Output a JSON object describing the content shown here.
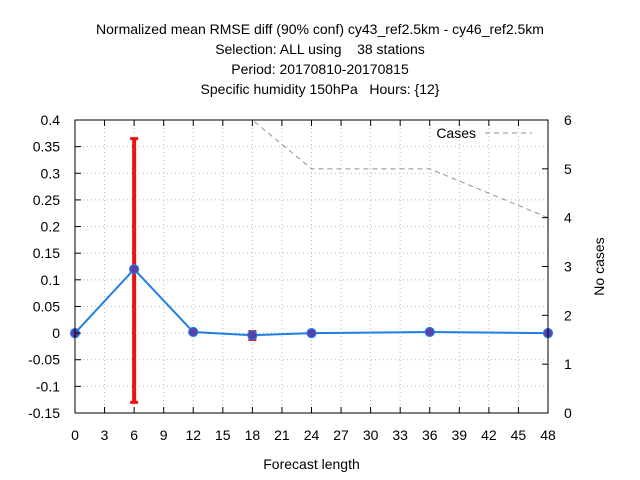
{
  "title_lines": [
    "Normalized mean RMSE diff (90% conf) cy43_ref2.5km - cy46_ref2.5km",
    "Selection: ALL using    38 stations",
    "Period: 20170810-20170815",
    "Specific humidity 150hPa   Hours: {12}"
  ],
  "chart_data": {
    "type": "line",
    "xlabel": "Forecast length",
    "ylabel": "",
    "y2label": "No cases",
    "xlim": [
      0,
      48
    ],
    "ylim": [
      -0.15,
      0.4
    ],
    "y2lim": [
      0,
      6
    ],
    "xticks": [
      0,
      3,
      6,
      9,
      12,
      15,
      18,
      21,
      24,
      27,
      30,
      33,
      36,
      39,
      42,
      45,
      48
    ],
    "xtick_labels": [
      "0",
      "3",
      "6",
      "9",
      "12",
      "15",
      "18",
      "21",
      "24",
      "27",
      "30",
      "33",
      "36",
      "39",
      "42",
      "45",
      "48"
    ],
    "yticks": [
      -0.15,
      -0.1,
      -0.05,
      0,
      0.05,
      0.1,
      0.15,
      0.2,
      0.25,
      0.3,
      0.35,
      0.4
    ],
    "ytick_labels": [
      "-0.15",
      "-0.1",
      "-0.05",
      "0",
      "0.05",
      "0.1",
      "0.15",
      "0.2",
      "0.25",
      "0.3",
      "0.35",
      "0.4"
    ],
    "y2ticks": [
      0,
      1,
      2,
      3,
      4,
      5,
      6
    ],
    "y2tick_labels": [
      "0",
      "1",
      "2",
      "3",
      "4",
      "5",
      "6"
    ],
    "grid": true,
    "series": [
      {
        "axis": "y",
        "color": "#1f7fe0",
        "marker_color": "#5b3fae",
        "x": [
          0,
          6,
          12,
          18,
          24,
          36,
          48
        ],
        "values": [
          0.0,
          0.12,
          0.002,
          -0.004,
          0.0,
          0.002,
          0.0
        ]
      },
      {
        "name": "Cases",
        "axis": "y2",
        "style": "dashed",
        "color": "#909090",
        "x": [
          0,
          6,
          12,
          18,
          24,
          36,
          48
        ],
        "values": [
          6,
          6,
          6,
          6,
          5,
          5,
          4
        ]
      }
    ],
    "error_bars": {
      "color": "#ee1111",
      "x": [
        0,
        6,
        12,
        18,
        24,
        36,
        48
      ],
      "low": [
        0.0,
        -0.13,
        0.0,
        -0.012,
        -0.002,
        0.0,
        -0.001
      ],
      "high": [
        0.0,
        0.365,
        0.004,
        0.003,
        0.002,
        0.004,
        0.001
      ]
    },
    "legend": {
      "position": "top-right",
      "entries": [
        "Cases"
      ]
    }
  }
}
